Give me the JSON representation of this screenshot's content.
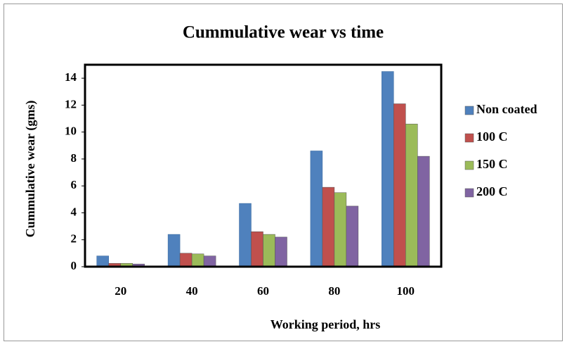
{
  "chart_data": {
    "type": "bar",
    "title": "Cummulative wear vs time",
    "x_label": "Working period, hrs",
    "y_label": "Cummulative wear (gms)",
    "categories": [
      "20",
      "40",
      "60",
      "80",
      "100"
    ],
    "series": [
      {
        "name": "Non coated",
        "color": "#4f81bd",
        "values": [
          0.8,
          2.4,
          4.7,
          8.6,
          14.5
        ]
      },
      {
        "name": "100 C",
        "color": "#c0504d",
        "values": [
          0.25,
          1.0,
          2.6,
          5.9,
          12.1
        ]
      },
      {
        "name": "150 C",
        "color": "#9bbb59",
        "values": [
          0.25,
          0.95,
          2.4,
          5.5,
          10.6
        ]
      },
      {
        "name": "200 C",
        "color": "#8064a2",
        "values": [
          0.2,
          0.8,
          2.2,
          4.5,
          8.2
        ]
      }
    ],
    "ylim": [
      0,
      15
    ],
    "yticks": [
      0,
      2,
      4,
      6,
      8,
      10,
      12,
      14
    ],
    "legend": "right"
  }
}
